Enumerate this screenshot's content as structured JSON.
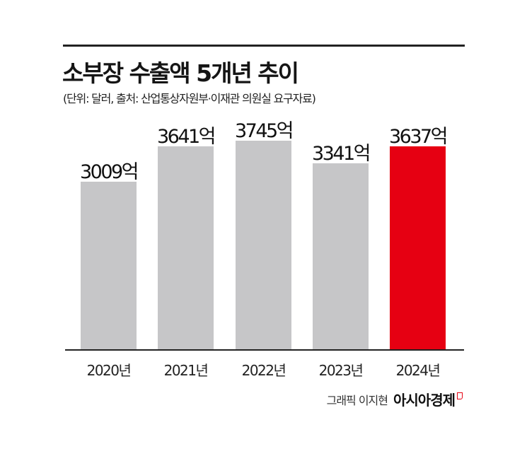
{
  "header": {
    "title": "소부장 수출액 5개년 추이",
    "subtitle": "(단위: 달러, 출처: 산업통상자원부·이재관 의원실 요구자료)"
  },
  "bars": [
    {
      "year": "2020년",
      "label": "3009억",
      "value": 3009,
      "color": "#c6c6c8"
    },
    {
      "year": "2021년",
      "label": "3641억",
      "value": 3641,
      "color": "#c6c6c8"
    },
    {
      "year": "2022년",
      "label": "3745억",
      "value": 3745,
      "color": "#c6c6c8"
    },
    {
      "year": "2023년",
      "label": "3341억",
      "value": 3341,
      "color": "#c6c6c8"
    },
    {
      "year": "2024년",
      "label": "3637억",
      "value": 3637,
      "color": "#e60012"
    }
  ],
  "footer": {
    "credit": "그래픽 이지현",
    "brand": "아시아경제"
  },
  "chart_data": {
    "type": "bar",
    "title": "소부장 수출액 5개년 추이",
    "subtitle": "(단위: 달러, 출처: 산업통상자원부·이재관 의원실 요구자료)",
    "categories": [
      "2020년",
      "2021년",
      "2022년",
      "2023년",
      "2024년"
    ],
    "values": [
      3009,
      3641,
      3745,
      3341,
      3637
    ],
    "data_labels": [
      "3009억",
      "3641억",
      "3745억",
      "3341억",
      "3637억"
    ],
    "unit": "억 달러",
    "xlabel": "",
    "ylabel": "",
    "grid": false,
    "legend": null,
    "highlight": {
      "category": "2024년",
      "color": "#e60012"
    },
    "bar_color": "#c6c6c8",
    "annotations": [
      "그래픽 이지현",
      "아시아경제"
    ]
  }
}
